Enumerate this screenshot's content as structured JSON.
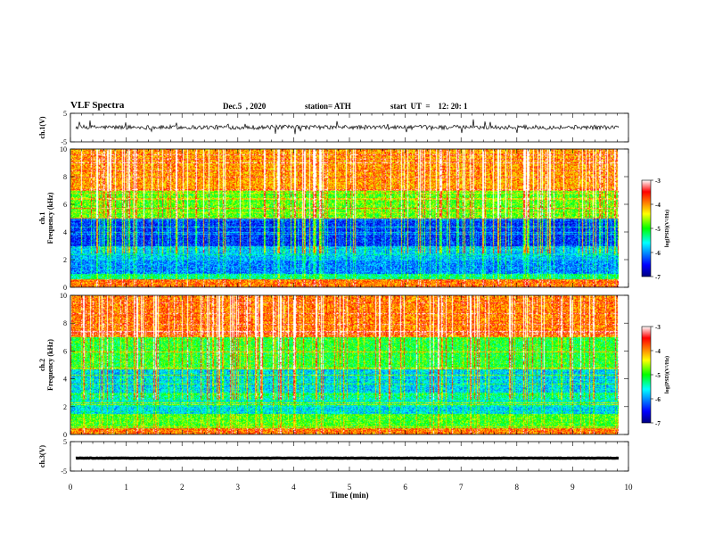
{
  "header": {
    "title": "VLF Spectra",
    "date": "Dec.5  , 2020",
    "station": "station= ATH",
    "start": "start  UT  =    12: 20: 1"
  },
  "chart_data": [
    {
      "type": "line",
      "panel": "ch1-waveform",
      "ylabel": "ch.1(V)",
      "ylim": [
        -5,
        5
      ],
      "yticks": [
        -5,
        5
      ],
      "xlim": [
        0,
        10
      ],
      "baseline": 0.1,
      "noise_amplitude": 1.5,
      "color": "#000000"
    },
    {
      "type": "heatmap",
      "panel": "ch1-spectrogram",
      "ylabel": "ch.1\nFrequency (kHz)",
      "ylim": [
        0,
        10
      ],
      "yticks": [
        0,
        2,
        4,
        6,
        8,
        10
      ],
      "xlim": [
        0,
        10
      ],
      "colorbar": {
        "label": "log(PSD)(V²/Hz)",
        "range": [
          -7,
          -3
        ],
        "ticks": [
          -7,
          -6,
          -5,
          -4,
          -3
        ]
      },
      "bands": [
        {
          "f0": 0,
          "f1": 0.6,
          "level": -4.0
        },
        {
          "f0": 0.6,
          "f1": 1.0,
          "level": -5.4
        },
        {
          "f0": 1.0,
          "f1": 2.0,
          "level": -6.1
        },
        {
          "f0": 2.0,
          "f1": 3.0,
          "level": -5.9
        },
        {
          "f0": 3.0,
          "f1": 5.0,
          "level": -6.5
        },
        {
          "f0": 5.0,
          "f1": 7.0,
          "level": -5.0
        },
        {
          "f0": 7.0,
          "f1": 10.0,
          "level": -4.2
        }
      ]
    },
    {
      "type": "heatmap",
      "panel": "ch2-spectrogram",
      "ylabel": "ch.2\nFrequency (kHz)",
      "ylim": [
        0,
        10
      ],
      "yticks": [
        0,
        2,
        4,
        6,
        8,
        10
      ],
      "xlim": [
        0,
        10
      ],
      "colorbar": {
        "label": "log(PSD)(V²/Hz)",
        "range": [
          -7,
          -3
        ],
        "ticks": [
          -7,
          -6,
          -5,
          -4,
          -3
        ]
      },
      "bands": [
        {
          "f0": 0,
          "f1": 0.5,
          "level": -4.0
        },
        {
          "f0": 0.5,
          "f1": 1.5,
          "level": -5.0
        },
        {
          "f0": 1.5,
          "f1": 2.0,
          "level": -5.8
        },
        {
          "f0": 2.0,
          "f1": 3.0,
          "level": -5.6
        },
        {
          "f0": 3.0,
          "f1": 4.8,
          "level": -5.9
        },
        {
          "f0": 4.8,
          "f1": 7.0,
          "level": -5.2
        },
        {
          "f0": 7.0,
          "f1": 10.0,
          "level": -4.1
        }
      ]
    },
    {
      "type": "line",
      "panel": "ch3-waveform",
      "ylabel": "ch.3(V)",
      "ylim": [
        -5,
        5
      ],
      "yticks": [
        -5,
        5
      ],
      "xlim": [
        0,
        10
      ],
      "baseline": -0.6,
      "noise_amplitude": 0.15,
      "color": "#000000"
    }
  ],
  "xaxis": {
    "label": "Time  (min)",
    "ticks": [
      0,
      1,
      2,
      3,
      4,
      5,
      6,
      7,
      8,
      9,
      10
    ],
    "data_end": 9.83
  }
}
